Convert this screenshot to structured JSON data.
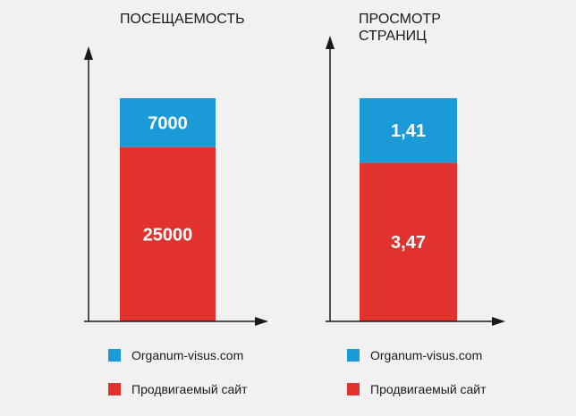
{
  "charts": [
    {
      "title": "ПОСЕЩАЕМОСТЬ",
      "legend": [
        {
          "label": "Organum-visus.com",
          "color": "#1a9ad6"
        },
        {
          "label": "Продвигаемый сайт",
          "color": "#e2322e"
        }
      ]
    },
    {
      "title": "ПРОСМОТР СТРАНИЦ",
      "legend": [
        {
          "label": "Organum-visus.com",
          "color": "#1a9ad6"
        },
        {
          "label": "Продвигаемый сайт",
          "color": "#e2322e"
        }
      ]
    }
  ],
  "chart_data": [
    {
      "type": "bar",
      "stacked": true,
      "title": "ПОСЕЩАЕМОСТЬ",
      "categories": [
        ""
      ],
      "series": [
        {
          "name": "Продвигаемый сайт",
          "values": [
            25000
          ],
          "color": "#e2322e"
        },
        {
          "name": "Organum-visus.com",
          "values": [
            7000
          ],
          "color": "#1a9ad6"
        }
      ],
      "data_labels": [
        "25000",
        "7000"
      ],
      "axis_ticks": false,
      "grid": false,
      "legend_position": "bottom"
    },
    {
      "type": "bar",
      "stacked": true,
      "title": "ПРОСМОТР СТРАНИЦ",
      "categories": [
        ""
      ],
      "series": [
        {
          "name": "Продвигаемый сайт",
          "values": [
            3.47
          ],
          "color": "#e2322e"
        },
        {
          "name": "Organum-visus.com",
          "values": [
            1.41
          ],
          "color": "#1a9ad6"
        }
      ],
      "data_labels": [
        "3,47",
        "1,41"
      ],
      "axis_ticks": false,
      "grid": false,
      "legend_position": "bottom"
    }
  ]
}
